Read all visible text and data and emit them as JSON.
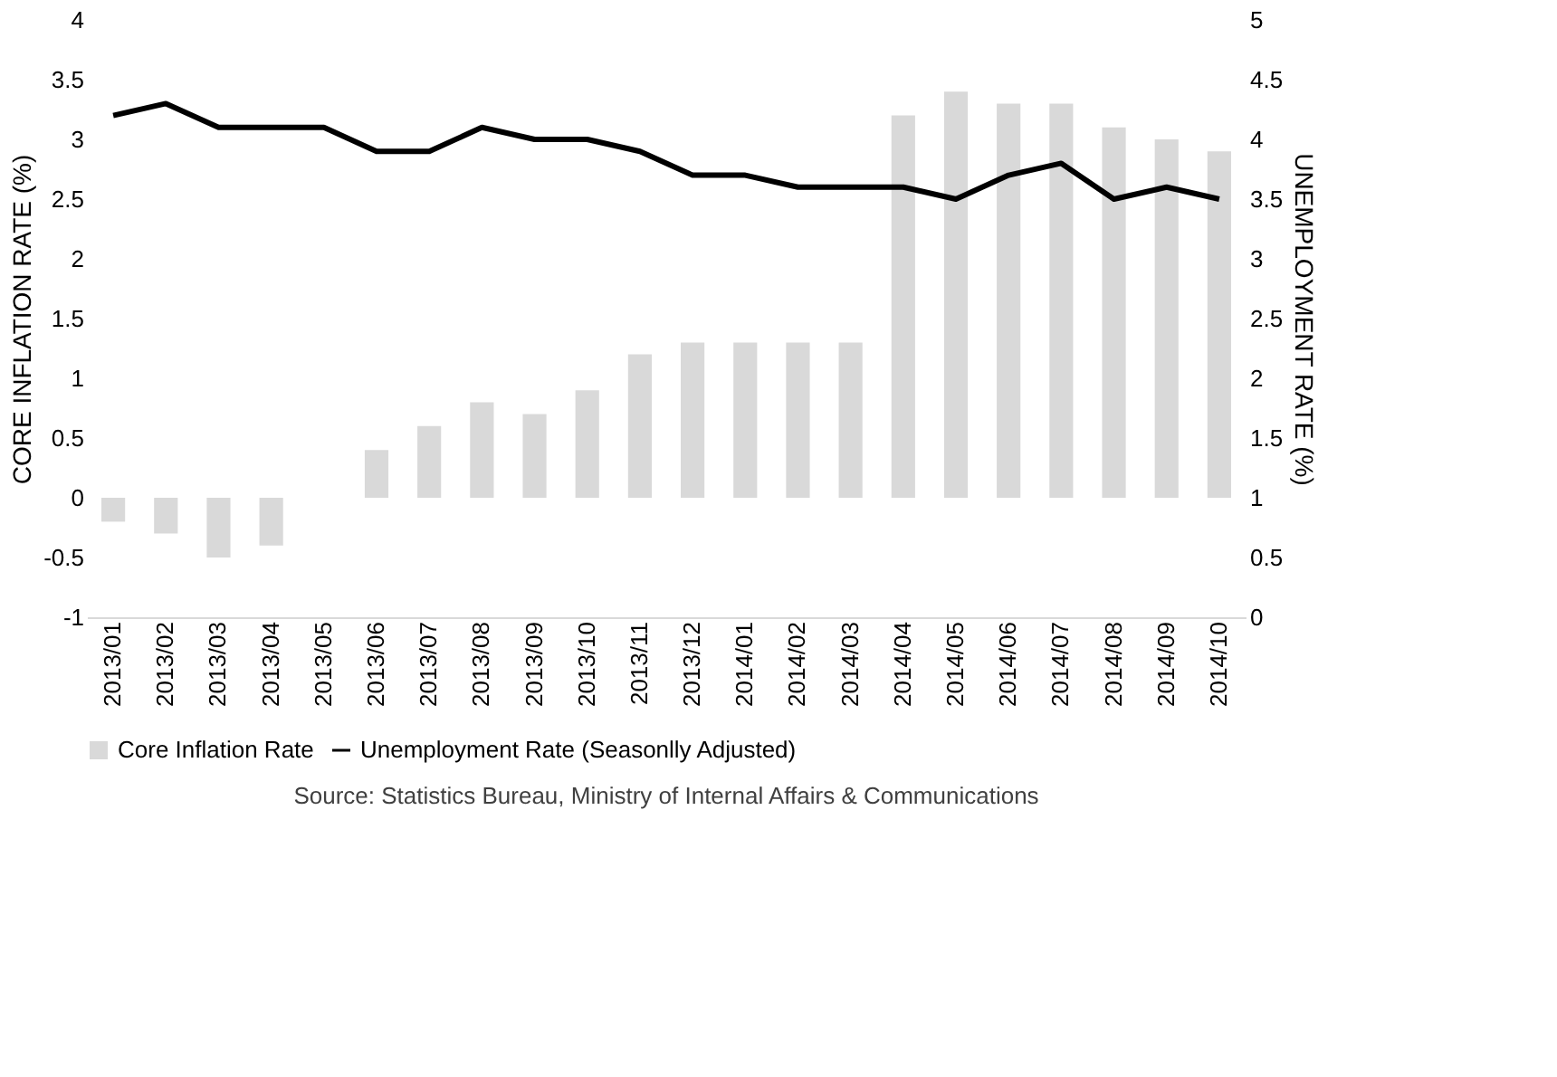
{
  "chart_data": {
    "type": "bar",
    "categories": [
      "2013/01",
      "2013/02",
      "2013/03",
      "2013/04",
      "2013/05",
      "2013/06",
      "2013/07",
      "2013/08",
      "2013/09",
      "2013/10",
      "2013/11",
      "2013/12",
      "2014/01",
      "2014/02",
      "2014/03",
      "2014/04",
      "2014/05",
      "2014/06",
      "2014/07",
      "2014/08",
      "2014/09",
      "2014/10"
    ],
    "series": [
      {
        "name": "Core Inflation Rate",
        "color": "#d9d9d9",
        "values": [
          -0.2,
          -0.3,
          -0.5,
          -0.4,
          0,
          0.4,
          0.6,
          0.8,
          0.7,
          0.9,
          1.2,
          1.3,
          1.3,
          1.3,
          1.3,
          3.2,
          3.4,
          3.3,
          3.3,
          3.1,
          3.0,
          2.9
        ]
      },
      {
        "name": "Unemployment Rate (Seasonlly Adjusted)",
        "type": "line",
        "axis": "y2",
        "color": "#000000",
        "values": [
          4.2,
          4.3,
          4.1,
          4.1,
          4.1,
          3.9,
          3.9,
          4.1,
          4.0,
          4.0,
          3.9,
          3.7,
          3.7,
          3.6,
          3.6,
          3.6,
          3.5,
          3.7,
          3.8,
          3.5,
          3.6,
          3.5
        ]
      }
    ],
    "ylabel": "CORE INFLATION RATE (%)",
    "y2label": "UNEMPLOYMENT RATE (%)",
    "ylim": [
      -1,
      4
    ],
    "yticks": [
      -1,
      -0.5,
      0,
      0.5,
      1,
      1.5,
      2,
      2.5,
      3,
      3.5,
      4
    ],
    "y2lim": [
      0,
      5
    ],
    "y2ticks": [
      0,
      0.5,
      1,
      1.5,
      2,
      2.5,
      3,
      3.5,
      4,
      4.5,
      5
    ],
    "legend": "bottom",
    "annotations": [
      "Source: Statistics Bureau, Ministry of Internal Affairs & Communications"
    ]
  }
}
